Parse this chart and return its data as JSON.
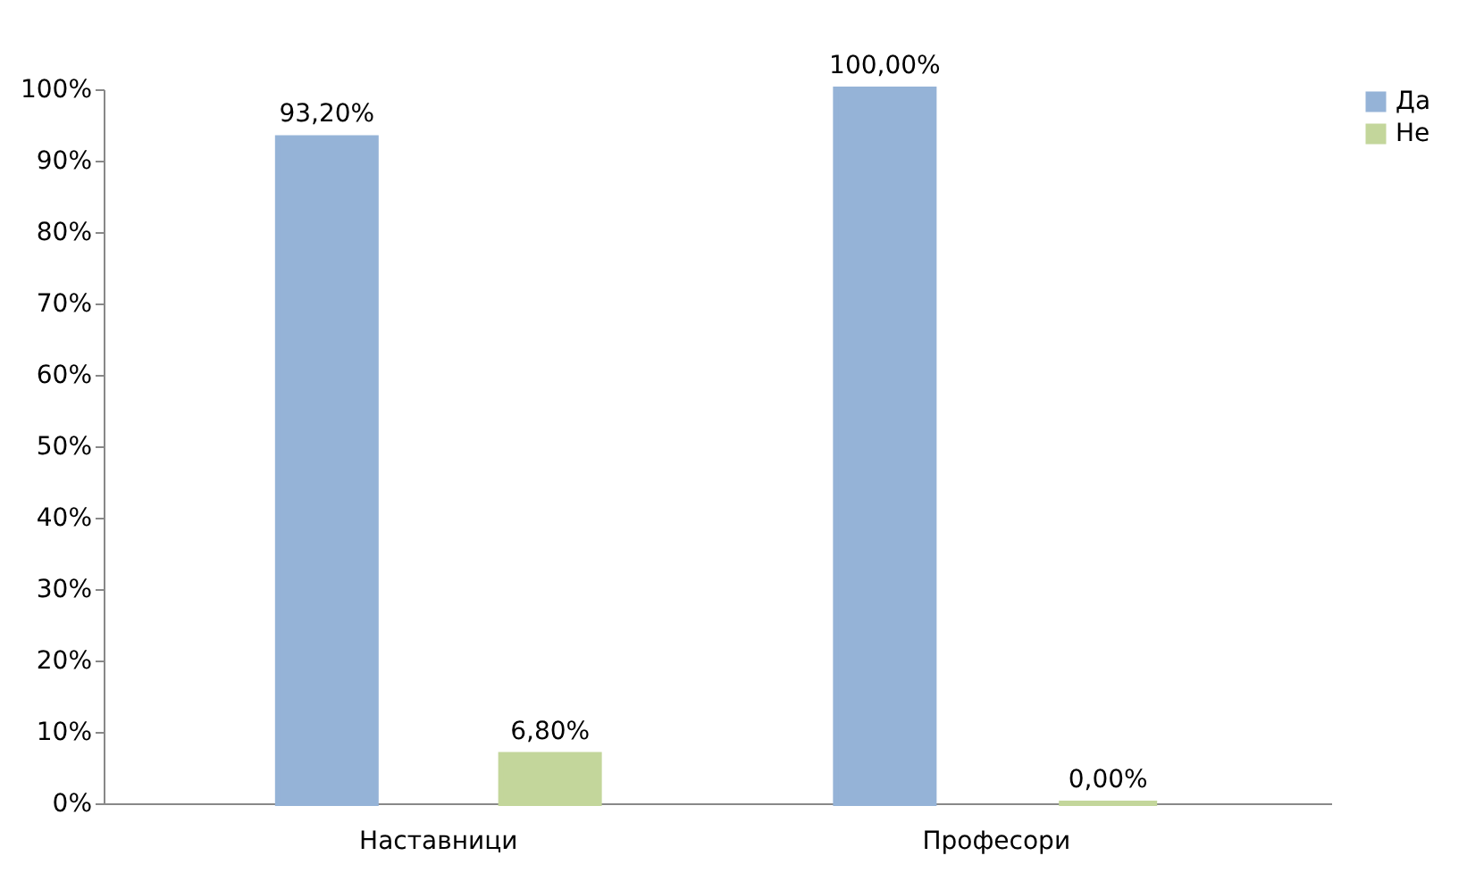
{
  "chart_data": {
    "type": "bar",
    "categories": [
      "Наставници",
      "Професори"
    ],
    "series": [
      {
        "name": "Да",
        "color": "#95b3d7",
        "values": [
          93.2,
          100
        ],
        "value_labels": [
          "93,20%",
          "100,00%"
        ]
      },
      {
        "name": "Не",
        "color": "#c3d69b",
        "values": [
          6.8,
          0
        ],
        "value_labels": [
          "6,80%",
          "0,00%"
        ]
      }
    ],
    "ylim": [
      0,
      100
    ],
    "yticks": [
      {
        "value": 0,
        "label": "0%"
      },
      {
        "value": 10,
        "label": "10%"
      },
      {
        "value": 20,
        "label": "20%"
      },
      {
        "value": 30,
        "label": "30%"
      },
      {
        "value": 40,
        "label": "40%"
      },
      {
        "value": 50,
        "label": "50%"
      },
      {
        "value": 60,
        "label": "60%"
      },
      {
        "value": 70,
        "label": "70%"
      },
      {
        "value": 80,
        "label": "80%"
      },
      {
        "value": 90,
        "label": "90%"
      },
      {
        "value": 100,
        "label": "100%"
      }
    ],
    "legend": "right",
    "grid": false
  }
}
